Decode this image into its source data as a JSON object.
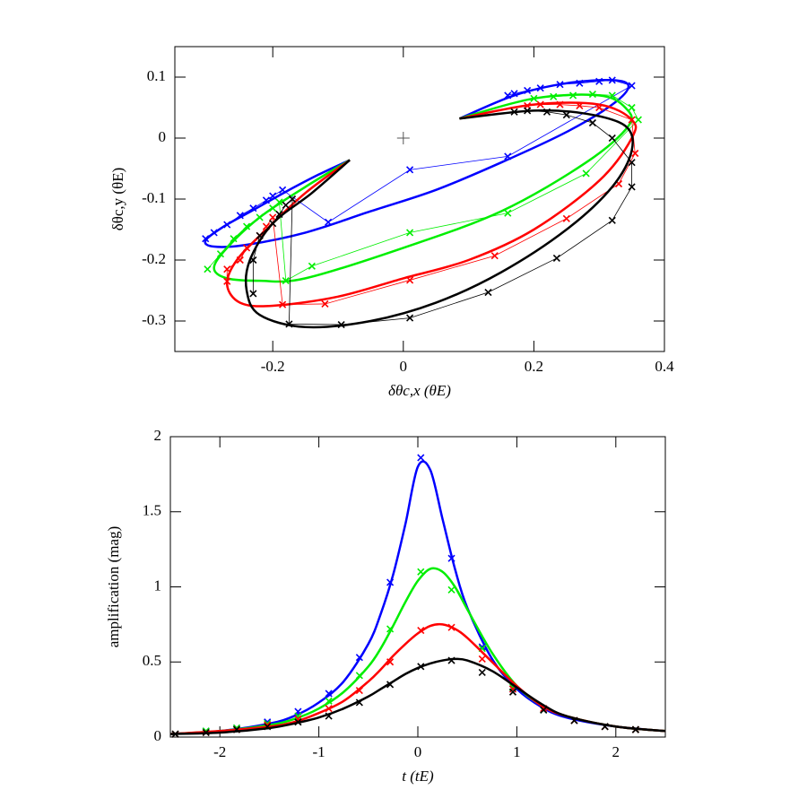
{
  "chart_data": [
    {
      "type": "line",
      "xlabel": "δθc,x  (θE)",
      "ylabel": "δθc,y  (θE)",
      "xlim": [
        -0.35,
        0.4
      ],
      "ylim": [
        -0.35,
        0.15
      ],
      "xticks": [
        -0.2,
        0,
        0.2,
        0.4
      ],
      "yticks": [
        -0.3,
        -0.2,
        -0.1,
        0,
        0.1
      ],
      "center_x": 0,
      "center_y": 0,
      "marker_lines": true,
      "series": [
        {
          "color": "#0000ff",
          "x": [
            -0.082,
            -0.13,
            -0.18,
            -0.23,
            -0.275,
            -0.303,
            -0.29,
            -0.24,
            -0.15,
            -0.05,
            0.05,
            0.15,
            0.25,
            0.32,
            0.345,
            0.32,
            0.25,
            0.17,
            0.086
          ],
          "y": [
            -0.036,
            -0.06,
            -0.088,
            -0.118,
            -0.145,
            -0.168,
            -0.178,
            -0.175,
            -0.155,
            -0.12,
            -0.085,
            -0.04,
            0.01,
            0.055,
            0.085,
            0.095,
            0.09,
            0.07,
            0.032
          ],
          "marker_x": [
            -0.303,
            -0.29,
            -0.27,
            -0.25,
            -0.23,
            -0.21,
            -0.2,
            -0.185,
            -0.115,
            0.01,
            0.16,
            0.35,
            0.32,
            0.3,
            0.27,
            0.24,
            0.21,
            0.19,
            0.17,
            0.16
          ],
          "marker_y": [
            -0.165,
            -0.155,
            -0.142,
            -0.127,
            -0.115,
            -0.102,
            -0.095,
            -0.085,
            -0.138,
            -0.052,
            -0.03,
            0.086,
            0.095,
            0.093,
            0.09,
            0.088,
            0.082,
            0.078,
            0.073,
            0.07
          ]
        },
        {
          "color": "#00ee00",
          "x": [
            -0.082,
            -0.15,
            -0.22,
            -0.27,
            -0.29,
            -0.27,
            -0.22,
            -0.15,
            0,
            0.15,
            0.28,
            0.345,
            0.34,
            0.3,
            0.2,
            0.086
          ],
          "y": [
            -0.036,
            -0.08,
            -0.13,
            -0.18,
            -0.213,
            -0.23,
            -0.234,
            -0.23,
            -0.18,
            -0.12,
            -0.04,
            0.02,
            0.05,
            0.07,
            0.065,
            0.032
          ],
          "marker_x": [
            -0.3,
            -0.28,
            -0.26,
            -0.24,
            -0.22,
            -0.2,
            -0.19,
            -0.18,
            -0.14,
            0.01,
            0.16,
            0.28,
            0.36,
            0.35,
            0.32,
            0.29,
            0.26,
            0.23,
            0.2
          ],
          "marker_y": [
            -0.215,
            -0.19,
            -0.165,
            -0.145,
            -0.13,
            -0.115,
            -0.105,
            -0.234,
            -0.21,
            -0.155,
            -0.123,
            -0.058,
            0.03,
            0.05,
            0.07,
            0.072,
            0.07,
            0.068,
            0.065
          ]
        },
        {
          "color": "#ff0000",
          "x": [
            -0.082,
            -0.15,
            -0.21,
            -0.255,
            -0.27,
            -0.25,
            -0.2,
            -0.1,
            0,
            0.1,
            0.2,
            0.3,
            0.35,
            0.35,
            0.3,
            0.2,
            0.086
          ],
          "y": [
            -0.036,
            -0.09,
            -0.15,
            -0.2,
            -0.24,
            -0.27,
            -0.275,
            -0.26,
            -0.23,
            -0.2,
            -0.15,
            -0.07,
            0,
            0.03,
            0.055,
            0.055,
            0.032
          ],
          "marker_x": [
            -0.27,
            -0.27,
            -0.25,
            -0.24,
            -0.22,
            -0.21,
            -0.2,
            -0.185,
            -0.12,
            0.01,
            0.14,
            0.25,
            0.33,
            0.355,
            0.35,
            0.3,
            0.27,
            0.24,
            0.21,
            0.19
          ],
          "marker_y": [
            -0.235,
            -0.215,
            -0.2,
            -0.18,
            -0.16,
            -0.145,
            -0.13,
            -0.273,
            -0.272,
            -0.233,
            -0.193,
            -0.132,
            -0.075,
            -0.025,
            0.03,
            0.05,
            0.053,
            0.055,
            0.055,
            0.053
          ]
        },
        {
          "color": "#000000",
          "x": [
            -0.082,
            -0.14,
            -0.2,
            -0.235,
            -0.24,
            -0.22,
            -0.15,
            -0.05,
            0.05,
            0.15,
            0.25,
            0.32,
            0.35,
            0.34,
            0.28,
            0.2,
            0.086
          ],
          "y": [
            -0.036,
            -0.09,
            -0.14,
            -0.2,
            -0.25,
            -0.29,
            -0.31,
            -0.3,
            -0.27,
            -0.22,
            -0.15,
            -0.08,
            -0.02,
            0.02,
            0.04,
            0.045,
            0.032
          ],
          "marker_x": [
            -0.23,
            -0.23,
            -0.22,
            -0.2,
            -0.19,
            -0.18,
            -0.17,
            -0.175,
            -0.095,
            0.01,
            0.13,
            0.235,
            0.32,
            0.35,
            0.35,
            0.32,
            0.29,
            0.25,
            0.22,
            0.19,
            0.17
          ],
          "marker_y": [
            -0.255,
            -0.2,
            -0.16,
            -0.14,
            -0.125,
            -0.11,
            -0.1,
            -0.305,
            -0.306,
            -0.295,
            -0.253,
            -0.197,
            -0.135,
            -0.08,
            -0.04,
            0,
            0.025,
            0.038,
            0.043,
            0.045,
            0.043
          ]
        }
      ]
    },
    {
      "type": "line",
      "xlabel": "t  (tE)",
      "ylabel": "amplification  (mag)",
      "xlim": [
        -2.5,
        2.5
      ],
      "ylim": [
        0,
        2
      ],
      "xticks": [
        -2,
        -1,
        0,
        1,
        2
      ],
      "yticks": [
        0,
        0.5,
        1,
        1.5,
        2
      ],
      "marker_lines": false,
      "x": [
        -2.5,
        -2,
        -1.5,
        -1.25,
        -1,
        -0.75,
        -0.5,
        -0.375,
        -0.25,
        -0.125,
        0,
        0.125,
        0.25,
        0.375,
        0.5,
        0.75,
        1,
        1.25,
        1.5,
        2,
        2.5
      ],
      "marker_x": [
        -2.45,
        -2.14,
        -1.83,
        -1.52,
        -1.21,
        -0.9,
        -0.59,
        -0.28,
        0.03,
        0.34,
        0.65,
        0.96,
        1.27,
        1.58,
        1.89,
        2.2
      ],
      "series": [
        {
          "color": "#0000ff",
          "values": [
            0.02,
            0.04,
            0.09,
            0.14,
            0.23,
            0.37,
            0.62,
            0.82,
            1.08,
            1.42,
            1.8,
            1.78,
            1.45,
            1.12,
            0.86,
            0.52,
            0.32,
            0.2,
            0.13,
            0.07,
            0.04
          ],
          "marker_values": [
            0.02,
            0.04,
            0.06,
            0.1,
            0.17,
            0.29,
            0.53,
            1.03,
            1.86,
            1.19,
            0.6,
            0.32,
            0.18,
            0.11,
            0.07,
            0.05
          ]
        },
        {
          "color": "#00ee00",
          "values": [
            0.02,
            0.04,
            0.08,
            0.12,
            0.19,
            0.3,
            0.47,
            0.59,
            0.74,
            0.9,
            1.04,
            1.12,
            1.1,
            1.0,
            0.85,
            0.56,
            0.34,
            0.21,
            0.14,
            0.07,
            0.04
          ],
          "marker_values": [
            0.02,
            0.04,
            0.06,
            0.09,
            0.14,
            0.24,
            0.41,
            0.72,
            1.1,
            0.98,
            0.59,
            0.33,
            0.18,
            0.11,
            0.07,
            0.05
          ]
        },
        {
          "color": "#ff0000",
          "values": [
            0.02,
            0.04,
            0.07,
            0.1,
            0.16,
            0.24,
            0.37,
            0.45,
            0.54,
            0.62,
            0.69,
            0.74,
            0.75,
            0.72,
            0.66,
            0.5,
            0.34,
            0.21,
            0.14,
            0.07,
            0.04
          ],
          "marker_values": [
            0.02,
            0.03,
            0.05,
            0.08,
            0.12,
            0.19,
            0.31,
            0.5,
            0.71,
            0.73,
            0.52,
            0.32,
            0.19,
            0.11,
            0.07,
            0.05
          ]
        },
        {
          "color": "#000000",
          "values": [
            0.02,
            0.03,
            0.06,
            0.09,
            0.13,
            0.19,
            0.27,
            0.32,
            0.37,
            0.42,
            0.46,
            0.49,
            0.51,
            0.52,
            0.51,
            0.44,
            0.33,
            0.22,
            0.14,
            0.07,
            0.04
          ],
          "marker_values": [
            0.02,
            0.03,
            0.05,
            0.07,
            0.1,
            0.14,
            0.23,
            0.35,
            0.47,
            0.51,
            0.43,
            0.3,
            0.18,
            0.11,
            0.07,
            0.05
          ]
        }
      ]
    }
  ]
}
